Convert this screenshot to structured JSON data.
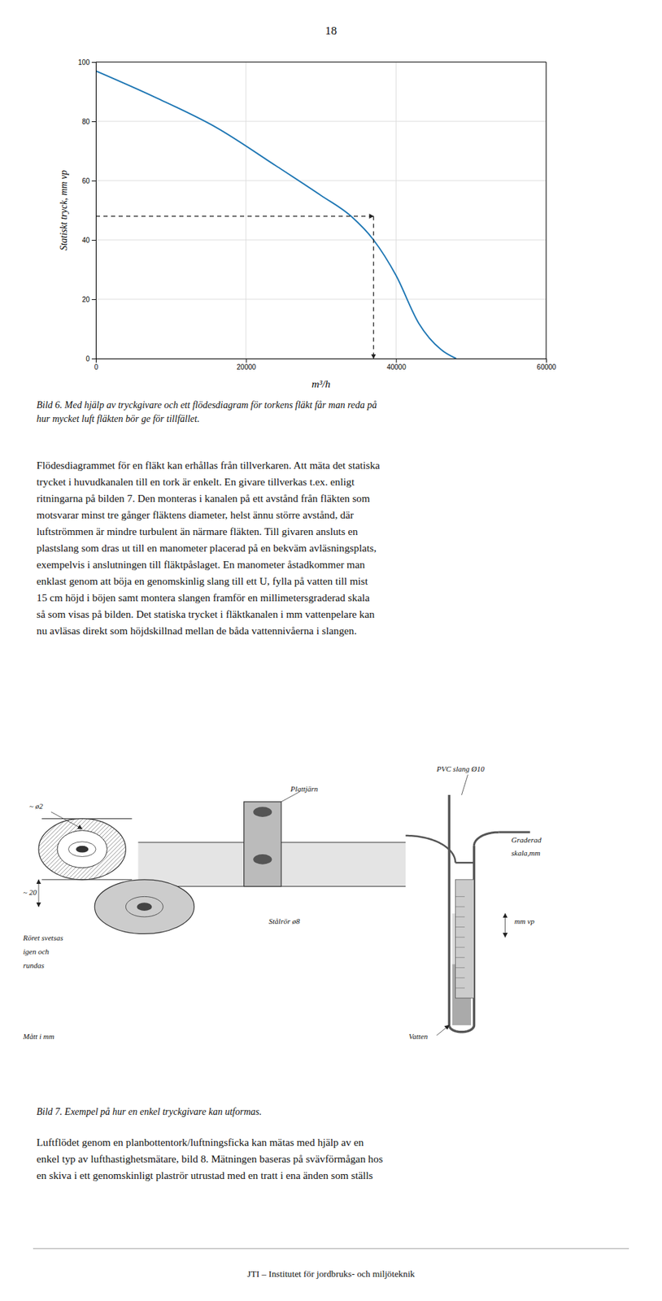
{
  "page_number": "18",
  "chart_data": {
    "type": "line",
    "xlabel": "m³/h",
    "ylabel": "Statiskt tryck, mm vp",
    "x": [
      0,
      8000,
      16000,
      24000,
      30000,
      34000,
      37000,
      40000,
      43000,
      46000,
      48000
    ],
    "values": [
      97,
      88,
      78,
      65,
      55,
      48,
      40,
      28,
      12,
      3,
      0
    ],
    "xlim": [
      0,
      60000
    ],
    "ylim": [
      0,
      100
    ],
    "xticks": [
      0,
      20000,
      40000,
      60000
    ],
    "yticks": [
      0,
      20,
      40,
      60,
      80,
      100
    ],
    "grid": true,
    "dashed_hline_y": 48,
    "dashed_vline_x": 37000
  },
  "caption1": [
    "Bild 6. Med hjälp av tryckgivare och ett flödesdiagram för torkens fläkt får man reda på",
    "hur mycket luft fläkten bör ge för tillfället."
  ],
  "paragraph1": [
    "Flödesdiagrammet för en fläkt kan erhållas från tillverkaren. Att mäta det statiska",
    "trycket i huvudkanalen till en tork är enkelt. En givare tillverkas t.ex. enligt",
    "ritningarna på bilden 7. Den monteras i kanalen på ett avstånd från fläkten som",
    "motsvarar minst tre gånger fläktens diameter, helst ännu större avstånd, där",
    "luftströmmen är mindre turbulent än närmare fläkten. Till givaren ansluts en",
    "plastslang som dras ut till en manometer placerad på en bekväm avläsningsplats,",
    "exempelvis i anslutningen till fläktpåslaget. En manometer åstadkommer man",
    "enklast genom att böja en genomskinlig slang till ett U, fylla på vatten till mist",
    "15 cm höjd i böjen samt montera slangen framför en millimetersgraderad skala",
    "så som visas på bilden. Det statiska trycket i fläktkanalen i mm vattenpelare kan",
    "nu avläsas direkt som höjdskillnad mellan de båda vattennivåerna i slangen."
  ],
  "figure7_labels": [
    "~ ø2",
    "~ 20",
    "Röret svetsas",
    "igen och",
    "rundas",
    "Mått i mm",
    "Plattjärn",
    "Stålrör ø8",
    "PVC slang Ø10",
    "Graderad",
    "skala,mm",
    "mm vp",
    "Vatten"
  ],
  "caption2": "Bild 7. Exempel på hur en enkel tryckgivare kan utformas.",
  "paragraph2": [
    "Luftflödet genom en planbottentork/luftningsficka kan mätas med hjälp av en",
    "enkel typ av lufthastighetsmätare, bild 8. Mätningen baseras på svävförmågan hos",
    "en skiva i ett genomskinligt plaströr utrustad med en tratt i ena änden som ställs"
  ],
  "footer": "JTI – Institutet för jordbruks- och miljöteknik"
}
